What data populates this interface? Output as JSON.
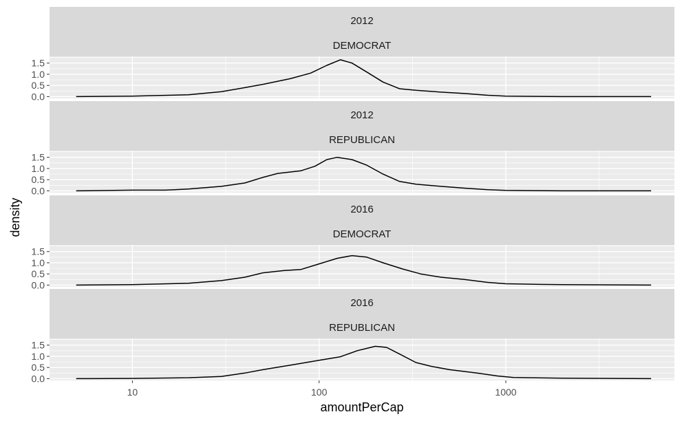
{
  "chart_data": {
    "type": "area",
    "xlabel": "amountPerCap",
    "ylabel": "density",
    "x_scale": "log10",
    "xlim": [
      3.6,
      8000
    ],
    "ylim": [
      -0.08,
      1.8
    ],
    "x_ticks": [
      10,
      100,
      1000
    ],
    "x_tick_labels": [
      "10",
      "100",
      "1000"
    ],
    "y_ticks": [
      0,
      0.5,
      1,
      1.5
    ],
    "y_tick_labels": [
      "0.0",
      "0.5",
      "1.0",
      "1.5"
    ],
    "grid": true,
    "colors": {
      "panel_bg": "#ebebeb",
      "strip_bg": "#d9d9d9",
      "grid": "#ffffff",
      "line": "#000000"
    },
    "facets": [
      {
        "strip_top": "2012",
        "strip_bottom": "DEMOCRAT",
        "points": [
          [
            5,
            0
          ],
          [
            10,
            0.02
          ],
          [
            20,
            0.08
          ],
          [
            30,
            0.22
          ],
          [
            40,
            0.4
          ],
          [
            50,
            0.55
          ],
          [
            70,
            0.8
          ],
          [
            90,
            1.05
          ],
          [
            110,
            1.4
          ],
          [
            130,
            1.65
          ],
          [
            150,
            1.5
          ],
          [
            180,
            1.1
          ],
          [
            220,
            0.65
          ],
          [
            270,
            0.35
          ],
          [
            330,
            0.28
          ],
          [
            450,
            0.2
          ],
          [
            600,
            0.14
          ],
          [
            800,
            0.06
          ],
          [
            1000,
            0.02
          ],
          [
            2000,
            0
          ],
          [
            6000,
            0
          ]
        ]
      },
      {
        "strip_top": "2012",
        "strip_bottom": "REPUBLICAN",
        "points": [
          [
            5,
            0
          ],
          [
            10,
            0.03
          ],
          [
            15,
            0.03
          ],
          [
            20,
            0.08
          ],
          [
            30,
            0.2
          ],
          [
            40,
            0.35
          ],
          [
            50,
            0.6
          ],
          [
            60,
            0.78
          ],
          [
            80,
            0.9
          ],
          [
            95,
            1.1
          ],
          [
            110,
            1.4
          ],
          [
            125,
            1.5
          ],
          [
            150,
            1.4
          ],
          [
            180,
            1.15
          ],
          [
            220,
            0.75
          ],
          [
            270,
            0.42
          ],
          [
            330,
            0.3
          ],
          [
            450,
            0.2
          ],
          [
            600,
            0.12
          ],
          [
            800,
            0.05
          ],
          [
            1000,
            0.02
          ],
          [
            2000,
            0
          ],
          [
            6000,
            0
          ]
        ]
      },
      {
        "strip_top": "2016",
        "strip_bottom": "DEMOCRAT",
        "points": [
          [
            5,
            0
          ],
          [
            10,
            0.02
          ],
          [
            20,
            0.08
          ],
          [
            30,
            0.2
          ],
          [
            40,
            0.35
          ],
          [
            50,
            0.55
          ],
          [
            65,
            0.65
          ],
          [
            80,
            0.7
          ],
          [
            100,
            0.95
          ],
          [
            125,
            1.2
          ],
          [
            150,
            1.32
          ],
          [
            180,
            1.25
          ],
          [
            220,
            1.0
          ],
          [
            280,
            0.72
          ],
          [
            350,
            0.5
          ],
          [
            450,
            0.35
          ],
          [
            600,
            0.25
          ],
          [
            800,
            0.12
          ],
          [
            1000,
            0.06
          ],
          [
            1500,
            0.03
          ],
          [
            2000,
            0.02
          ],
          [
            6000,
            0
          ]
        ]
      },
      {
        "strip_top": "2016",
        "strip_bottom": "REPUBLICAN",
        "points": [
          [
            5,
            0
          ],
          [
            10,
            0.01
          ],
          [
            20,
            0.04
          ],
          [
            30,
            0.1
          ],
          [
            40,
            0.25
          ],
          [
            50,
            0.4
          ],
          [
            70,
            0.6
          ],
          [
            100,
            0.82
          ],
          [
            130,
            0.98
          ],
          [
            160,
            1.25
          ],
          [
            200,
            1.45
          ],
          [
            230,
            1.4
          ],
          [
            270,
            1.1
          ],
          [
            330,
            0.72
          ],
          [
            400,
            0.55
          ],
          [
            500,
            0.4
          ],
          [
            700,
            0.25
          ],
          [
            900,
            0.12
          ],
          [
            1100,
            0.05
          ],
          [
            2000,
            0.02
          ],
          [
            6000,
            0
          ]
        ]
      }
    ]
  }
}
